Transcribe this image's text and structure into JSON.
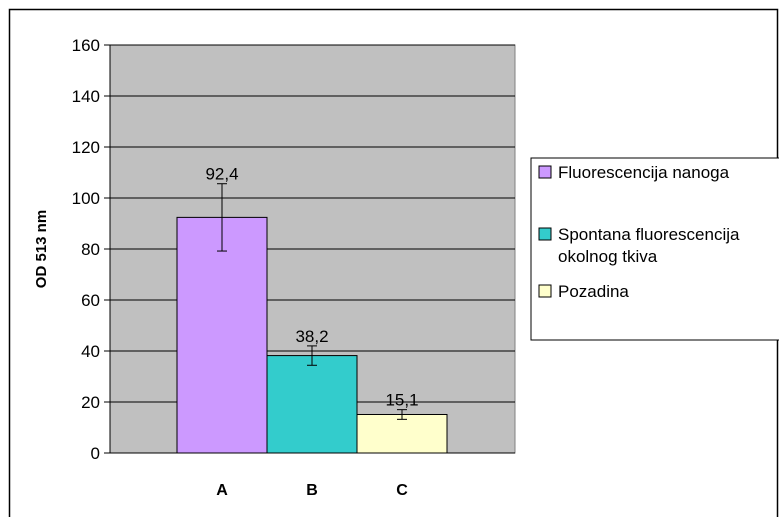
{
  "chart_data": {
    "type": "bar",
    "ylabel": "OD 513 nm",
    "ylim": [
      0,
      160
    ],
    "yticks": [
      0,
      20,
      40,
      60,
      80,
      100,
      120,
      140,
      160
    ],
    "grid": true,
    "legend_position": "right",
    "plot_background": "#c0c0c0",
    "categories": [
      "A",
      "B",
      "C"
    ],
    "series": [
      {
        "name": "Fluorescencija nanoga",
        "category": "A",
        "value": 92.4,
        "label": "92,4",
        "error_low": 79.2,
        "error_high": 105.6,
        "color": "#cc99ff"
      },
      {
        "name": "Spontana fluorescencija okolnog tkiva",
        "category": "B",
        "value": 38.2,
        "label": "38,2",
        "error_low": 34.4,
        "error_high": 42.0,
        "color": "#33cccc"
      },
      {
        "name": "Pozadina",
        "category": "C",
        "value": 15.1,
        "label": "15,1",
        "error_low": 13.2,
        "error_high": 17.0,
        "color": "#ffffcc"
      }
    ],
    "legend_lines": [
      [
        "Fluorescencija nanoga"
      ],
      [
        "Spontana fluorescencija",
        "okolnog tkiva"
      ],
      [
        "Pozadina"
      ]
    ]
  }
}
